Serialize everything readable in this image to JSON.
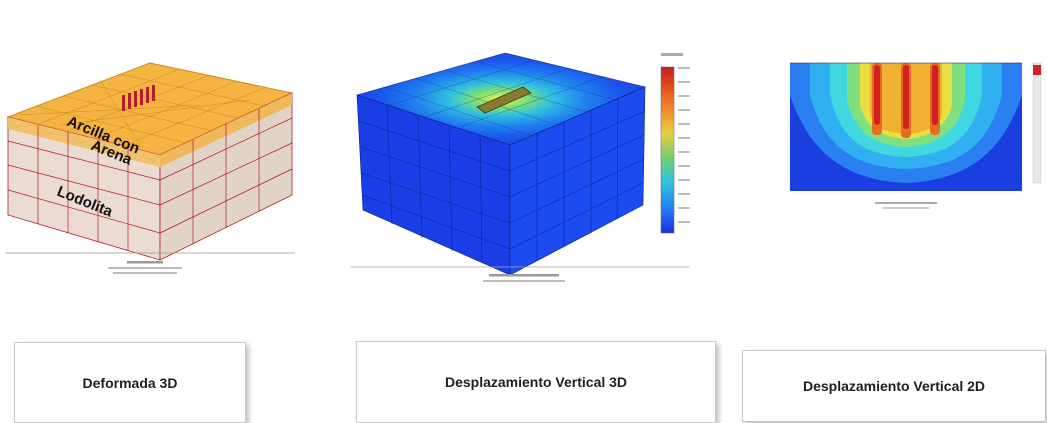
{
  "panels": [
    {
      "layer_labels": [
        "Arcilla con",
        "Arena",
        "Lodolita"
      ],
      "caption": "Deformada 3D"
    },
    {
      "caption": "Desplazamiento Vertical 3D"
    },
    {
      "caption": "Desplazamiento Vertical 2D"
    }
  ],
  "colors": {
    "clay": "#f5b342",
    "mudstone": "#eadcd2",
    "mesh_line": "#b51c2c",
    "contour_low": "#1f3de0",
    "contour_high": "#e8461c"
  }
}
